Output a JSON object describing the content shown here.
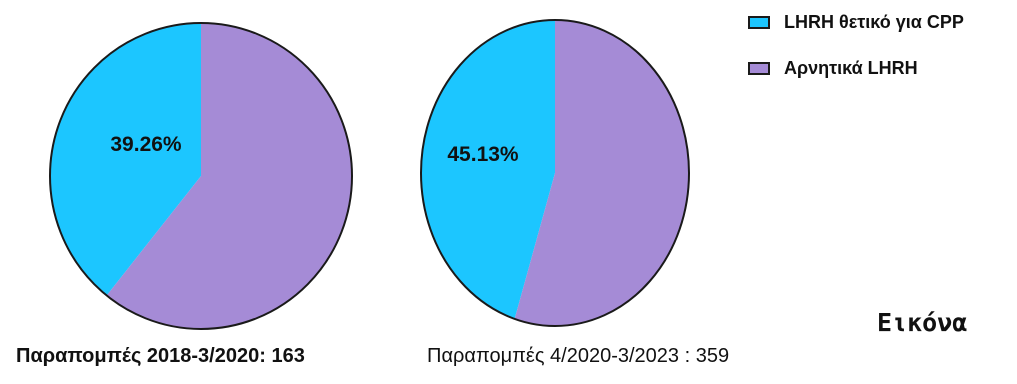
{
  "chart_data": [
    {
      "type": "pie",
      "categories": [
        "LHRH θετικό για CPP",
        "Αρνητικά LHRH"
      ],
      "values": [
        39.26,
        60.74
      ],
      "colors": [
        "#1cc6ff",
        "#a58bd6"
      ],
      "data_labels": [
        "39.26%",
        ""
      ],
      "caption": "Παραπομπές 2018-3/2020: 163"
    },
    {
      "type": "pie",
      "categories": [
        "LHRH θετικό για CPP",
        "Αρνητικά LHRH"
      ],
      "values": [
        45.13,
        54.87
      ],
      "colors": [
        "#1cc6ff",
        "#a58bd6"
      ],
      "data_labels": [
        "45.13%",
        ""
      ],
      "caption": "Παραπομπές 4/2020-3/2023 : 359"
    }
  ],
  "legend": {
    "position": "top-right",
    "items": [
      {
        "label": "LHRH θετικό για CPP",
        "color": "#1cc6ff"
      },
      {
        "label": "Αρνητικά LHRH",
        "color": "#a58bd6"
      }
    ]
  },
  "figure_label": "Εικόνα"
}
